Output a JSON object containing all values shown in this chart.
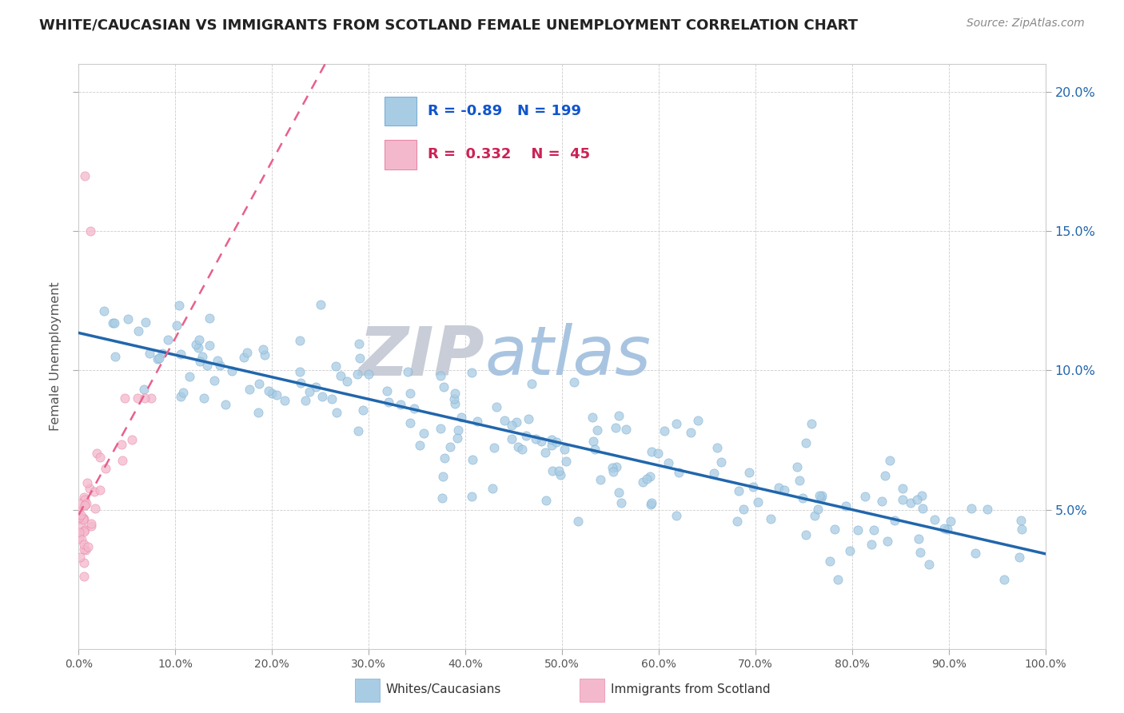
{
  "title": "WHITE/CAUCASIAN VS IMMIGRANTS FROM SCOTLAND FEMALE UNEMPLOYMENT CORRELATION CHART",
  "source": "Source: ZipAtlas.com",
  "ylabel": "Female Unemployment",
  "r_blue": -0.89,
  "n_blue": 199,
  "r_pink": 0.332,
  "n_pink": 45,
  "blue_color": "#a8cce4",
  "pink_color": "#f4b8cc",
  "blue_line_color": "#2166ac",
  "pink_line_color": "#e8608a",
  "watermark_zip": "ZIP",
  "watermark_atlas": "atlas",
  "watermark_color_zip": "#c8cdd8",
  "watermark_color_atlas": "#a8c4e0",
  "legend_labels": [
    "Whites/Caucasians",
    "Immigrants from Scotland"
  ],
  "xlim": [
    0,
    1.0
  ],
  "ylim": [
    0,
    0.21
  ],
  "right_yticks": [
    0.05,
    0.1,
    0.15,
    0.2
  ],
  "right_yticklabels": [
    "5.0%",
    "10.0%",
    "15.0%",
    "20.0%"
  ],
  "xticks": [
    0.0,
    0.1,
    0.2,
    0.3,
    0.4,
    0.5,
    0.6,
    0.7,
    0.8,
    0.9,
    1.0
  ],
  "xticklabels": [
    "0.0%",
    "10.0%",
    "20.0%",
    "30.0%",
    "40.0%",
    "50.0%",
    "60.0%",
    "70.0%",
    "80.0%",
    "90.0%",
    "100.0%"
  ]
}
